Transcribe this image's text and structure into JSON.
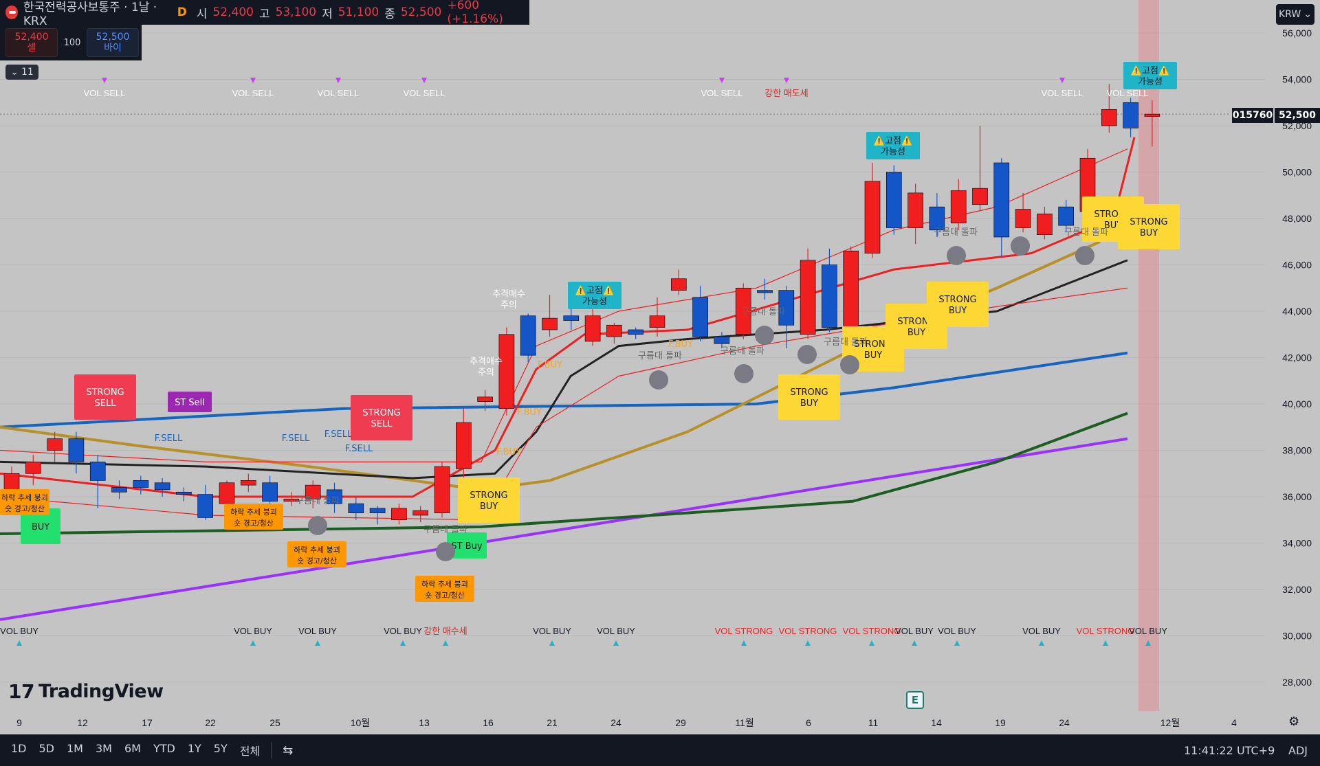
{
  "header": {
    "symbol_title": "한국전력공사보통주 · 1날 · KRX",
    "flag": "D",
    "open_label": "시",
    "open": "52,400",
    "high_label": "고",
    "high": "53,100",
    "low_label": "저",
    "low": "51,100",
    "close_label": "종",
    "close": "52,500",
    "change": "+600 (+1.16%)"
  },
  "trade": {
    "sell_price": "52,400",
    "sell_label": "셀",
    "qty": "100",
    "buy_price": "52,500",
    "buy_label": "바이"
  },
  "collapse_label": "11",
  "currency": "KRW",
  "last_price_code": "015760",
  "last_price": "52,500",
  "brand": "TradingView",
  "earnings_badge": "E",
  "bottom": {
    "ranges": [
      "1D",
      "5D",
      "1M",
      "3M",
      "6M",
      "YTD",
      "1Y",
      "5Y",
      "전체"
    ],
    "clock": "11:41:22 UTC+9",
    "adj": "ADJ"
  },
  "colors": {
    "up": "#f01e1e",
    "down": "#1455c8",
    "background": "#c4c4c4",
    "yellow_label": "#fdd835",
    "red_label": "#f03c50",
    "cyan_label": "#1fb4c8"
  },
  "chart_data": {
    "type": "candlestick",
    "y_ticks": [
      "56,000",
      "54,000",
      "52,000",
      "50,000",
      "48,000",
      "46,000",
      "44,000",
      "42,000",
      "40,000",
      "38,000",
      "36,000",
      "34,000",
      "32,000",
      "30,000",
      "28,000"
    ],
    "x_ticks": [
      "9",
      "12",
      "17",
      "22",
      "25",
      "10월",
      "13",
      "16",
      "21",
      "24",
      "29",
      "11월",
      "6",
      "11",
      "14",
      "19",
      "24",
      "12월",
      "4"
    ],
    "candles": [
      {
        "o": 36000,
        "c": 37000,
        "h": 37300,
        "l": 35500
      },
      {
        "o": 37000,
        "c": 37500,
        "h": 37800,
        "l": 36500
      },
      {
        "o": 38000,
        "c": 38500,
        "h": 38800,
        "l": 37500
      },
      {
        "o": 38500,
        "c": 37500,
        "h": 38800,
        "l": 37000
      },
      {
        "o": 37500,
        "c": 36700,
        "h": 37800,
        "l": 35500
      },
      {
        "o": 36400,
        "c": 36200,
        "h": 36700,
        "l": 35900
      },
      {
        "o": 36700,
        "c": 36400,
        "h": 36900,
        "l": 36100
      },
      {
        "o": 36600,
        "c": 36300,
        "h": 36800,
        "l": 36000
      },
      {
        "o": 36200,
        "c": 36100,
        "h": 36400,
        "l": 35800
      },
      {
        "o": 36100,
        "c": 35100,
        "h": 36500,
        "l": 35000
      },
      {
        "o": 35700,
        "c": 36600,
        "h": 36700,
        "l": 35500
      },
      {
        "o": 36500,
        "c": 36700,
        "h": 37000,
        "l": 36200
      },
      {
        "o": 36600,
        "c": 35800,
        "h": 36900,
        "l": 35600
      },
      {
        "o": 35800,
        "c": 35900,
        "h": 36200,
        "l": 35600
      },
      {
        "o": 35900,
        "c": 36500,
        "h": 36700,
        "l": 35500
      },
      {
        "o": 36300,
        "c": 35700,
        "h": 36600,
        "l": 35300
      },
      {
        "o": 35700,
        "c": 35300,
        "h": 36000,
        "l": 35000
      },
      {
        "o": 35500,
        "c": 35300,
        "h": 35600,
        "l": 34800
      },
      {
        "o": 35000,
        "c": 35500,
        "h": 35700,
        "l": 34800
      },
      {
        "o": 35200,
        "c": 35400,
        "h": 35600,
        "l": 34900
      },
      {
        "o": 35300,
        "c": 37300,
        "h": 37500,
        "l": 35100
      },
      {
        "o": 37200,
        "c": 39200,
        "h": 39800,
        "l": 36800
      },
      {
        "o": 40100,
        "c": 40300,
        "h": 40600,
        "l": 39700
      },
      {
        "o": 39800,
        "c": 43000,
        "h": 43300,
        "l": 39500
      },
      {
        "o": 43800,
        "c": 42100,
        "h": 43900,
        "l": 41800
      },
      {
        "o": 43200,
        "c": 43700,
        "h": 44700,
        "l": 42900
      },
      {
        "o": 43800,
        "c": 43600,
        "h": 44900,
        "l": 43200
      },
      {
        "o": 42700,
        "c": 43800,
        "h": 44200,
        "l": 42500
      },
      {
        "o": 42900,
        "c": 43400,
        "h": 43500,
        "l": 42600
      },
      {
        "o": 43200,
        "c": 43000,
        "h": 43300,
        "l": 42800
      },
      {
        "o": 43300,
        "c": 43800,
        "h": 44600,
        "l": 42900
      },
      {
        "o": 44900,
        "c": 45400,
        "h": 45800,
        "l": 44700
      },
      {
        "o": 44600,
        "c": 42900,
        "h": 45100,
        "l": 42700
      },
      {
        "o": 42900,
        "c": 42600,
        "h": 43100,
        "l": 42400
      },
      {
        "o": 43000,
        "c": 45000,
        "h": 45200,
        "l": 42800
      },
      {
        "o": 44900,
        "c": 44800,
        "h": 45400,
        "l": 44500
      },
      {
        "o": 44900,
        "c": 43400,
        "h": 45100,
        "l": 42400
      },
      {
        "o": 43000,
        "c": 46200,
        "h": 46700,
        "l": 42800
      },
      {
        "o": 46000,
        "c": 43300,
        "h": 46700,
        "l": 43100
      },
      {
        "o": 43300,
        "c": 46600,
        "h": 46800,
        "l": 42900
      },
      {
        "o": 46500,
        "c": 49600,
        "h": 50400,
        "l": 46300
      },
      {
        "o": 50000,
        "c": 47600,
        "h": 50300,
        "l": 47300
      },
      {
        "o": 47600,
        "c": 49100,
        "h": 49500,
        "l": 46900
      },
      {
        "o": 48500,
        "c": 47500,
        "h": 49100,
        "l": 47200
      },
      {
        "o": 47800,
        "c": 49200,
        "h": 49700,
        "l": 47500
      },
      {
        "o": 48600,
        "c": 49300,
        "h": 52000,
        "l": 48300
      },
      {
        "o": 50400,
        "c": 47200,
        "h": 50600,
        "l": 46300
      },
      {
        "o": 47600,
        "c": 48400,
        "h": 49100,
        "l": 47400
      },
      {
        "o": 47300,
        "c": 48200,
        "h": 48500,
        "l": 47100
      },
      {
        "o": 48500,
        "c": 47700,
        "h": 48800,
        "l": 47400
      },
      {
        "o": 48300,
        "c": 50600,
        "h": 51000,
        "l": 48000
      },
      {
        "o": 52000,
        "c": 52700,
        "h": 53800,
        "l": 51700
      },
      {
        "o": 53000,
        "c": 51900,
        "h": 53200,
        "l": 51500
      },
      {
        "o": 52400,
        "c": 52500,
        "h": 53100,
        "l": 51100
      }
    ],
    "volume_signals_top": [
      "VOL SELL",
      "VOL SELL",
      "VOL SELL",
      "VOL SELL",
      "VOL SELL",
      "강한 매도세",
      "VOL SELL",
      "VOL SELL"
    ],
    "volume_signals_bottom": [
      "VOL BUY",
      "VOL BUY",
      "VOL BUY",
      "VOL BUY",
      "강한 매수세",
      "VOL BUY",
      "VOL BUY",
      "VOL STRONG",
      "VOL STRONG",
      "VOL STRONG",
      "VOL BUY",
      "VOL BUY",
      "VOL BUY",
      "VOL STRONG",
      "VOL BUY"
    ],
    "labels": [
      {
        "text": "STRONG\nSELL",
        "kind": "red"
      },
      {
        "text": "ST Sell",
        "kind": "purple"
      },
      {
        "text": "STRONG\nSELL",
        "kind": "red"
      },
      {
        "text": "STRONG\nBUY",
        "kind": "yellow"
      },
      {
        "text": "ST Buy",
        "kind": "green"
      },
      {
        "text": "BUY",
        "kind": "green"
      },
      {
        "text": "STRONG\nBUY",
        "kind": "yellow"
      },
      {
        "text": "STRONG\nBUY",
        "kind": "yellow"
      },
      {
        "text": "STRONG\nBUY",
        "kind": "yellow"
      },
      {
        "text": "STRONG\nBUY",
        "kind": "yellow"
      },
      {
        "text": "STRONG\nBUY",
        "kind": "yellow"
      },
      {
        "text": "STRONG\nBUY",
        "kind": "yellow"
      },
      {
        "text": "⚠️고점⚠️\n가능성",
        "kind": "cyan"
      },
      {
        "text": "⚠️고점⚠️\n가능성",
        "kind": "cyan"
      },
      {
        "text": "⚠️고점⚠️\n가능성",
        "kind": "cyan"
      },
      {
        "text": "하락 추세 붕괴\n숏 경고/청산",
        "kind": "orange"
      },
      {
        "text": "하락 추세 붕괴\n숏 경고/청산",
        "kind": "orange"
      },
      {
        "text": "하락 추세 붕괴\n숏 경고/청산",
        "kind": "orange"
      },
      {
        "text": "하락 추세 붕괴\n숏 경고/청산",
        "kind": "orange"
      }
    ],
    "small_text": [
      "F.SELL",
      "F.SELL",
      "F.SELL",
      "F.SELL",
      "F.BUY",
      "F.BUY",
      "F.BUY",
      "F.BUY",
      "추격매수\n주의",
      "추격매수\n주의",
      "구름대 돌파",
      "구름대 돌파",
      "구름대 돌파",
      "구름대 돌파",
      "구름대 돌파",
      "구름대 돌파",
      "구름대 돌파",
      "구름대 돌파"
    ]
  }
}
